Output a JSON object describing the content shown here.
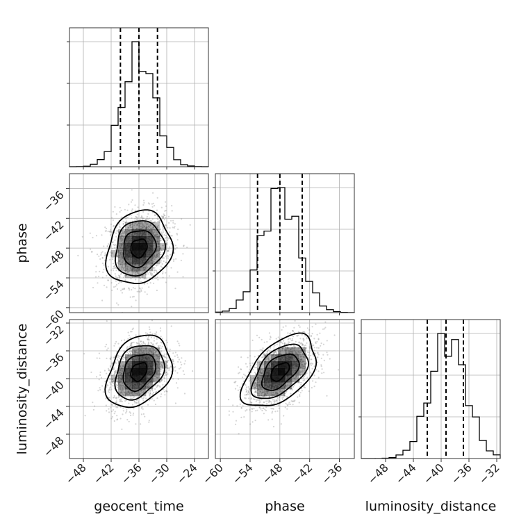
{
  "chart_data": {
    "type": "corner",
    "parameters": [
      "geocent_time",
      "phase",
      "luminosity_distance"
    ],
    "axis_labels": {
      "geocent_time": "geocent_time",
      "phase": "phase",
      "luminosity_distance": "luminosity_distance"
    },
    "ranges": {
      "geocent_time": [
        -51,
        -21
      ],
      "phase": [
        -61,
        -33
      ],
      "luminosity_distance": [
        -51.5,
        -31.5
      ]
    },
    "ticks": {
      "geocent_time": [
        -48,
        -42,
        -36,
        -30,
        -24
      ],
      "phase": [
        -60,
        -54,
        -48,
        -42,
        -36
      ],
      "luminosity_distance": [
        -48,
        -44,
        -40,
        -36,
        -32
      ]
    },
    "tick_labels": {
      "geocent_time": [
        "−48",
        "−42",
        "−36",
        "−30",
        "−24"
      ],
      "phase": [
        "−60",
        "−54",
        "−48",
        "−42",
        "−36"
      ],
      "luminosity_distance": [
        "−48",
        "−44",
        "−40",
        "−36",
        "−32"
      ]
    },
    "posterior": {
      "geocent_time": {
        "mean": -36.0,
        "sd": 3.5
      },
      "phase": {
        "mean": -48.0,
        "sd": 3.7
      },
      "luminosity_distance": {
        "mean": -39.0,
        "sd": 2.6
      }
    },
    "correlations": {
      "geocent_time|phase": 0.15,
      "geocent_time|luminosity_distance": 0.3,
      "phase|luminosity_distance": 0.5
    },
    "quantiles": {
      "geocent_time": [
        -40.0,
        -36.0,
        -32.0
      ],
      "phase": [
        -52.5,
        -48.0,
        -43.5
      ],
      "luminosity_distance": [
        -42.0,
        -39.3,
        -36.8
      ]
    },
    "hist_bins": 20,
    "contour_levels_sigma": [
      0.5,
      1.0,
      1.5,
      2.0
    ],
    "grid": true,
    "colors": {
      "line": "#000000",
      "scatter": "#888888",
      "density": "#000000",
      "grid": "#b0b0b0"
    }
  }
}
